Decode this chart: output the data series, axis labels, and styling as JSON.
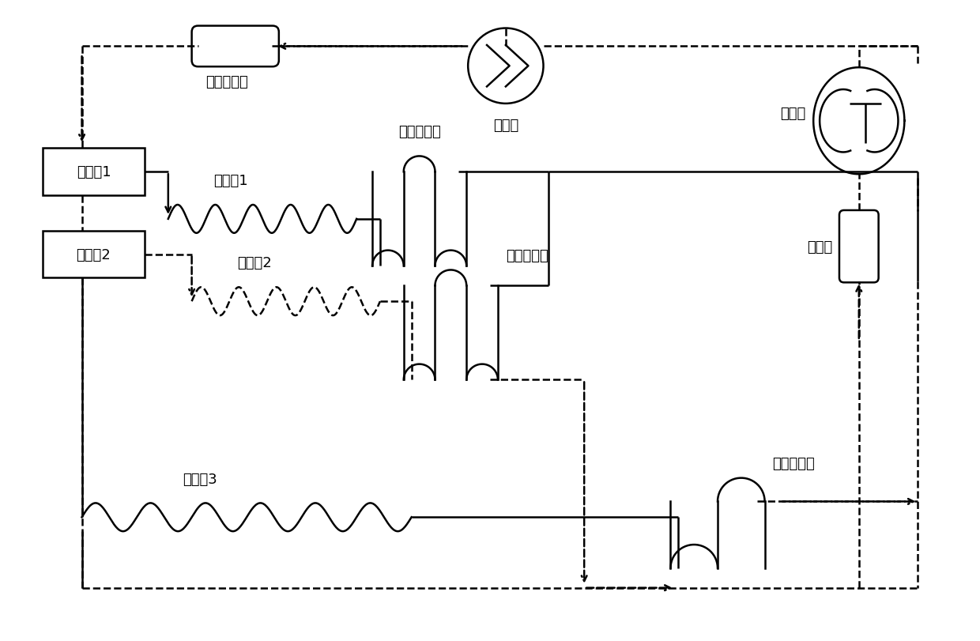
{
  "bg_color": "#ffffff",
  "lc": "#000000",
  "lw": 1.8,
  "fs": 13,
  "labels": {
    "compressor": "压缩机",
    "accumulator": "储液器",
    "condenser": "冷凝器",
    "dryer": "干燥过滤器",
    "solenoid1": "电磁阀1",
    "solenoid2": "电磁阀2",
    "capillary1": "毛细管1",
    "capillary2": "毛细管2",
    "capillary3": "毛细管3",
    "evap_wine": "酒区蒸发器",
    "evap_fridge": "冷藏蒸发器",
    "evap_freeze": "冷冻蒸发器"
  }
}
